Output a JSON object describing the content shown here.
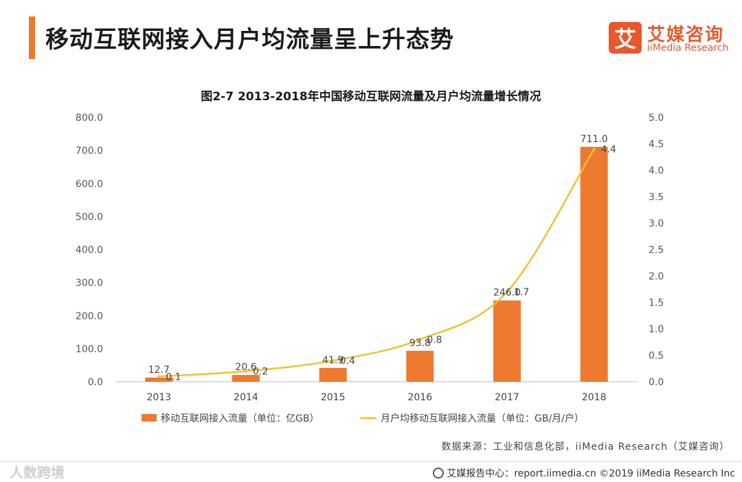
{
  "header": {
    "title": "移动互联网接入月户均流量呈上升态势",
    "accent_color": "#EE7A2F"
  },
  "logo": {
    "mark": "艾",
    "name_cn": "艾媒咨询",
    "name_en": "iiMedia Research",
    "color": "#E9582C"
  },
  "chart_data": {
    "type": "bar",
    "title": "图2-7 2013-2018年中国移动互联网流量及月户均流量增长情况",
    "categories": [
      "2013",
      "2014",
      "2015",
      "2016",
      "2017",
      "2018"
    ],
    "series": [
      {
        "name": "移动互联网接入流量（单位：亿GB）",
        "type": "bar",
        "axis": "left",
        "color": "#EE7A2F",
        "values": [
          12.7,
          20.6,
          41.9,
          93.8,
          246.0,
          711.0
        ],
        "labels": [
          "12.7",
          "20.6",
          "41.9",
          "93.8",
          "246.0",
          "711.0"
        ]
      },
      {
        "name": "月户均移动互联网接入流量（单位：GB/月/户）",
        "type": "line",
        "axis": "right",
        "color": "#F2C12E",
        "values": [
          0.1,
          0.2,
          0.4,
          0.8,
          1.7,
          4.4
        ],
        "labels": [
          "0.1",
          "0.2",
          "0.4",
          "0.8",
          "1.7",
          "4.4"
        ]
      }
    ],
    "y_left": {
      "lim": [
        0,
        800
      ],
      "ticks": [
        "0.0",
        "100.0",
        "200.0",
        "300.0",
        "400.0",
        "500.0",
        "600.0",
        "700.0",
        "800.0"
      ]
    },
    "y_right": {
      "lim": [
        0,
        5
      ],
      "ticks": [
        "0.0",
        "0.5",
        "1.0",
        "1.5",
        "2.0",
        "2.5",
        "3.0",
        "3.5",
        "4.0",
        "4.5",
        "5.0"
      ]
    },
    "legend_position": "bottom",
    "grid": false
  },
  "source": "数据来源：工业和信息化部，iiMedia Research（艾媒咨询）",
  "watermark": "人数跨境",
  "footer": "艾媒报告中心：report.iimedia.cn ©2019 iiMedia Research Inc"
}
